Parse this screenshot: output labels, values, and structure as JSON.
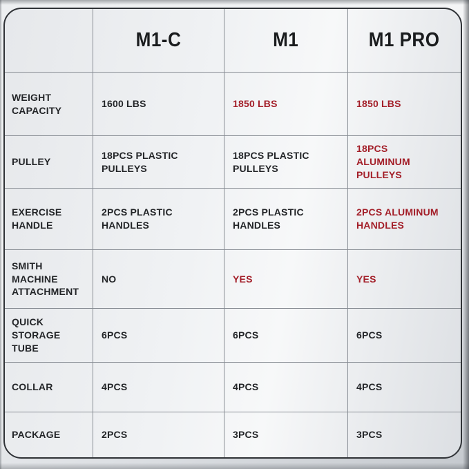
{
  "table": {
    "header": [
      "",
      "M1-C",
      "M1",
      "M1 PRO"
    ],
    "rows": [
      {
        "label": "WEIGHT\nCAPACITY",
        "values": [
          {
            "text": "1600 LBS",
            "highlight": false
          },
          {
            "text": "1850 LBS",
            "highlight": true
          },
          {
            "text": "1850 LBS",
            "highlight": true
          }
        ]
      },
      {
        "label": "PULLEY",
        "values": [
          {
            "text": "18PCS PLASTIC\nPULLEYS",
            "highlight": false
          },
          {
            "text": "18PCS PLASTIC\nPULLEYS",
            "highlight": false
          },
          {
            "text": "18PCS\nALUMINUM PULLEYS",
            "highlight": true
          }
        ]
      },
      {
        "label": "EXERCISE\nHANDLE",
        "values": [
          {
            "text": "2PCS PLASTIC\nHANDLES",
            "highlight": false
          },
          {
            "text": "2PCS PLASTIC\nHANDLES",
            "highlight": false
          },
          {
            "text": "2PCS ALUMINUM\nHANDLES",
            "highlight": true
          }
        ]
      },
      {
        "label": "SMITH MACHINE\nATTACHMENT",
        "values": [
          {
            "text": "NO",
            "highlight": false
          },
          {
            "text": "YES",
            "highlight": true
          },
          {
            "text": "YES",
            "highlight": true
          }
        ]
      },
      {
        "label": "QUICK\nSTORAGE TUBE",
        "values": [
          {
            "text": "6PCS",
            "highlight": false
          },
          {
            "text": "6PCS",
            "highlight": false
          },
          {
            "text": "6PCS",
            "highlight": false
          }
        ]
      },
      {
        "label": "COLLAR",
        "values": [
          {
            "text": "4PCS",
            "highlight": false
          },
          {
            "text": "4PCS",
            "highlight": false
          },
          {
            "text": "4PCS",
            "highlight": false
          }
        ]
      },
      {
        "label": "PACKAGE",
        "values": [
          {
            "text": "2PCS",
            "highlight": false
          },
          {
            "text": "3PCS",
            "highlight": false
          },
          {
            "text": "3PCS",
            "highlight": false
          }
        ]
      }
    ]
  },
  "colors": {
    "highlight": "#a31e28",
    "header_text": "#1a1c1e",
    "body_text": "#232528",
    "table_border": "#2f3236",
    "grid_line": "#878c93"
  },
  "chart_data": {
    "type": "table",
    "title": "",
    "columns": [
      "",
      "M1-C",
      "M1",
      "M1 PRO"
    ],
    "rows": [
      [
        "WEIGHT CAPACITY",
        "1600 LBS",
        "1850 LBS",
        "1850 LBS"
      ],
      [
        "PULLEY",
        "18PCS PLASTIC PULLEYS",
        "18PCS PLASTIC PULLEYS",
        "18PCS ALUMINUM PULLEYS"
      ],
      [
        "EXERCISE HANDLE",
        "2PCS PLASTIC HANDLES",
        "2PCS PLASTIC HANDLES",
        "2PCS ALUMINUM HANDLES"
      ],
      [
        "SMITH MACHINE ATTACHMENT",
        "NO",
        "YES",
        "YES"
      ],
      [
        "QUICK STORAGE TUBE",
        "6PCS",
        "6PCS",
        "6PCS"
      ],
      [
        "COLLAR",
        "4PCS",
        "4PCS",
        "4PCS"
      ],
      [
        "PACKAGE",
        "2PCS",
        "3PCS",
        "3PCS"
      ]
    ],
    "highlight_map": [
      [
        false,
        true,
        true
      ],
      [
        false,
        false,
        true
      ],
      [
        false,
        false,
        true
      ],
      [
        false,
        true,
        true
      ],
      [
        false,
        false,
        false
      ],
      [
        false,
        false,
        false
      ],
      [
        false,
        false,
        false
      ]
    ],
    "highlight_color": "#a31e28",
    "layout_hints": {
      "grid": true,
      "rounded_border": true,
      "header_row": true
    }
  }
}
